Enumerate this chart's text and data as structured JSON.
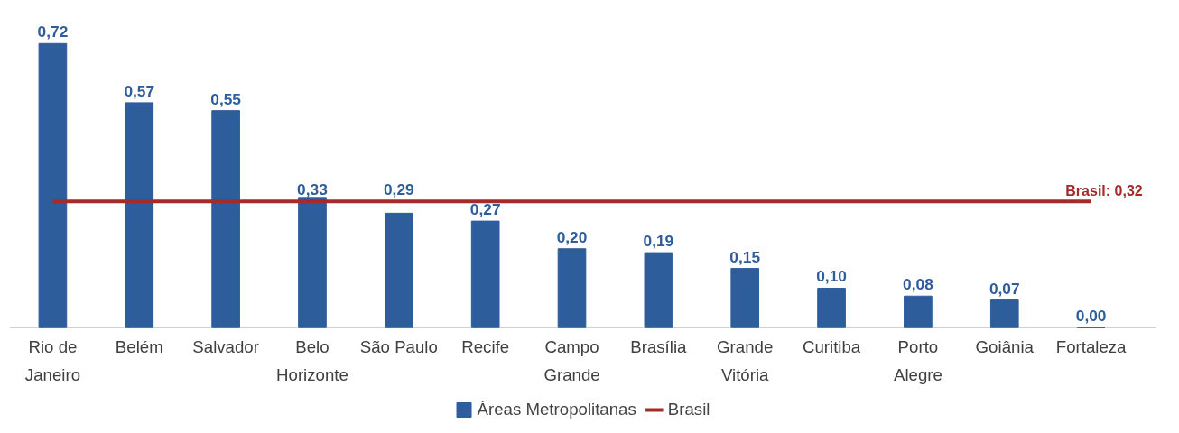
{
  "chart_data": {
    "type": "bar",
    "categories": [
      "Rio de Janeiro",
      "Belém",
      "Salvador",
      "Belo Horizonte",
      "São Paulo",
      "Recife",
      "Campo Grande",
      "Brasília",
      "Grande Vitória",
      "Curitiba",
      "Porto Alegre",
      "Goiânia",
      "Fortaleza"
    ],
    "series": [
      {
        "name": "Áreas Metropolitanas",
        "color": "#2e5d9b",
        "values": [
          0.72,
          0.57,
          0.55,
          0.33,
          0.29,
          0.27,
          0.2,
          0.19,
          0.15,
          0.1,
          0.08,
          0.07,
          0.0
        ],
        "value_labels": [
          "0,72",
          "0,57",
          "0,55",
          "0,33",
          "0,29",
          "0,27",
          "0,20",
          "0,19",
          "0,15",
          "0,10",
          "0,08",
          "0,07",
          "0,00"
        ]
      },
      {
        "name": "Brasil",
        "type": "line",
        "color": "#a52a2a",
        "values": [
          0.32,
          0.32,
          0.32,
          0.32,
          0.32,
          0.32,
          0.32,
          0.32,
          0.32,
          0.32,
          0.32,
          0.32,
          0.32
        ]
      }
    ],
    "annotations": [
      {
        "text": "Brasil: 0,32",
        "x": "Fortaleza",
        "y": 0.32
      }
    ],
    "legend": "bottom"
  }
}
